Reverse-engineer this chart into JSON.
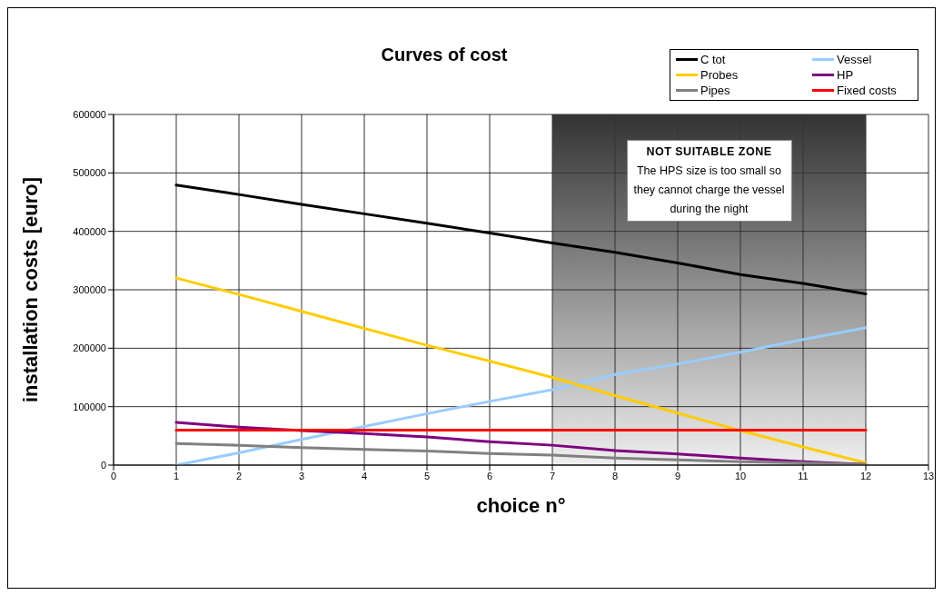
{
  "chart_data": {
    "type": "line",
    "title": "Curves of cost",
    "xlabel": "choice n°",
    "ylabel": "installation costs [euro]",
    "x": [
      1,
      2,
      3,
      4,
      5,
      6,
      7,
      8,
      9,
      10,
      11,
      12
    ],
    "series": [
      {
        "name": "C tot",
        "color": "#000000",
        "values": [
          479000,
          463000,
          446000,
          430000,
          414000,
          397000,
          380000,
          364000,
          346000,
          326000,
          311000,
          293000
        ]
      },
      {
        "name": "Vessel",
        "color": "#99ccff",
        "values": [
          0,
          21000,
          44000,
          66000,
          88000,
          109000,
          129000,
          155000,
          173000,
          193000,
          215000,
          235000
        ]
      },
      {
        "name": "Probes",
        "color": "#ffcc00",
        "values": [
          320000,
          292000,
          263000,
          234000,
          205000,
          178000,
          150000,
          119000,
          89000,
          59000,
          31000,
          4000
        ]
      },
      {
        "name": "HP",
        "color": "#800080",
        "values": [
          73000,
          65000,
          59000,
          54000,
          48000,
          40000,
          34000,
          25000,
          19000,
          12000,
          6000,
          1000
        ]
      },
      {
        "name": "Pipes",
        "color": "#808080",
        "values": [
          37000,
          34000,
          30000,
          27000,
          24000,
          20000,
          17000,
          12000,
          9000,
          6000,
          4000,
          1000
        ]
      },
      {
        "name": "Fixed costs",
        "color": "#ff0000",
        "values": [
          60000,
          60000,
          60000,
          60000,
          60000,
          60000,
          60000,
          60000,
          60000,
          60000,
          60000,
          60000
        ]
      }
    ],
    "xlim": [
      0,
      13
    ],
    "xticks": [
      0,
      1,
      2,
      3,
      4,
      5,
      6,
      7,
      8,
      9,
      10,
      11,
      12,
      13
    ],
    "ylim": [
      0,
      600000
    ],
    "yticks": [
      0,
      100000,
      200000,
      300000,
      400000,
      500000,
      600000
    ],
    "bands": [
      {
        "axis": "x",
        "from": 7,
        "to": 12,
        "label": "NOT SUITABLE ZONE",
        "color": "#333333"
      }
    ],
    "annotations": [
      "The HPS size is too small so they cannot charge the vessel during the night"
    ],
    "grid": true,
    "legend": "top right",
    "marker": "none",
    "line_style": "solid"
  }
}
